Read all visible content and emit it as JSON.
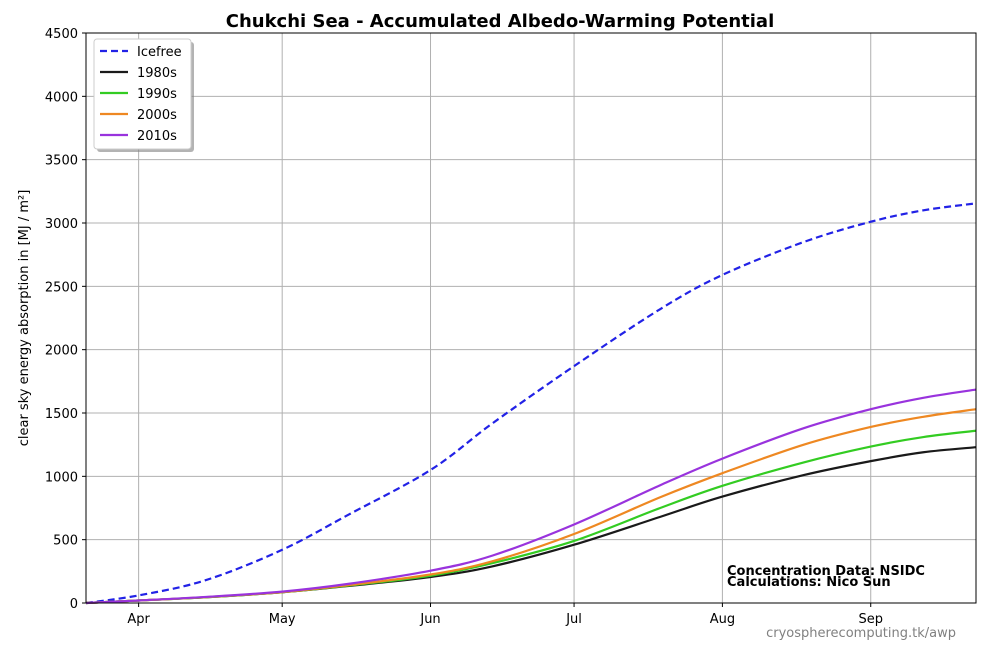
{
  "chart_data": {
    "type": "line",
    "title": "Chukchi Sea - Accumulated Albedo-Warming Potential",
    "ylabel": "clear sky energy absorption in  [MJ / m²]",
    "xlabel": "",
    "ylim": [
      0,
      4500
    ],
    "yticks": [
      0,
      500,
      1000,
      1500,
      2000,
      2500,
      3000,
      3500,
      4000,
      4500
    ],
    "xlim_day": [
      80,
      266
    ],
    "x_month_ticks": [
      {
        "label": "Apr",
        "day": 91
      },
      {
        "label": "May",
        "day": 121
      },
      {
        "label": "Jun",
        "day": 152
      },
      {
        "label": "Jul",
        "day": 182
      },
      {
        "label": "Aug",
        "day": 213
      },
      {
        "label": "Sep",
        "day": 244
      }
    ],
    "grid": true,
    "legend_position": "top-left",
    "x": [
      80,
      91,
      105,
      121,
      135,
      152,
      165,
      182,
      200,
      213,
      230,
      244,
      255,
      266
    ],
    "series": [
      {
        "name": "Icefree",
        "style": "dashed",
        "color": "#2222e6",
        "values": [
          0,
          60,
          180,
          420,
          700,
          1050,
          1420,
          1870,
          2320,
          2590,
          2850,
          3010,
          3100,
          3155
        ]
      },
      {
        "name": "1980s",
        "style": "solid",
        "color": "#1a1a1a",
        "values": [
          0,
          20,
          45,
          85,
          135,
          205,
          290,
          460,
          680,
          840,
          1010,
          1120,
          1190,
          1230
        ]
      },
      {
        "name": "1990s",
        "style": "solid",
        "color": "#33cc22",
        "values": [
          0,
          20,
          45,
          85,
          138,
          215,
          315,
          490,
          750,
          925,
          1110,
          1235,
          1310,
          1360
        ]
      },
      {
        "name": "2000s",
        "style": "solid",
        "color": "#ee8822",
        "values": [
          0,
          20,
          46,
          86,
          142,
          225,
          330,
          545,
          835,
          1025,
          1250,
          1390,
          1470,
          1530
        ]
      },
      {
        "name": "2010s",
        "style": "solid",
        "color": "#9933dd",
        "values": [
          0,
          20,
          48,
          90,
          152,
          255,
          375,
          620,
          930,
          1140,
          1380,
          1530,
          1620,
          1685
        ]
      }
    ]
  },
  "credits": {
    "line1": "Concentration Data: NSIDC",
    "line2": "Calculations: Nico Sun"
  },
  "source_url": "cryospherecomputing.tk/awp"
}
